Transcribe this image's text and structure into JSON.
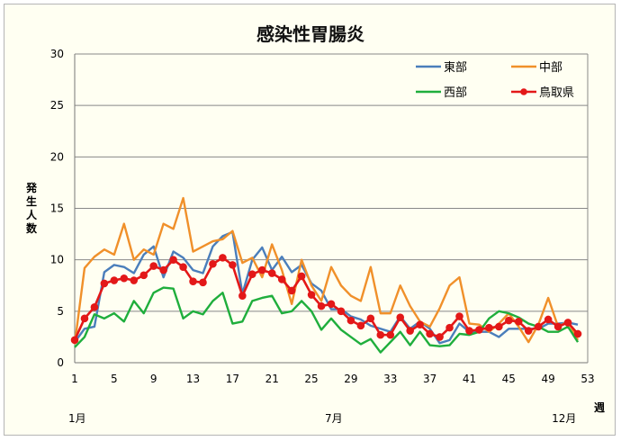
{
  "chart_data": {
    "type": "line",
    "title": "感染性胃腸炎",
    "ylabel": "発生人数",
    "xlabel": "週",
    "ylim": [
      0,
      30
    ],
    "yticks": [
      0,
      5,
      10,
      15,
      20,
      25,
      30
    ],
    "xlim": [
      1,
      53
    ],
    "xticks": [
      1,
      5,
      9,
      13,
      17,
      21,
      25,
      29,
      33,
      37,
      41,
      45,
      49,
      53
    ],
    "month_labels": [
      {
        "week": 1,
        "text": "1月"
      },
      {
        "week": 27,
        "text": "7月"
      },
      {
        "week": 50,
        "text": "12月"
      }
    ],
    "grid": true,
    "legend_position": "top-right",
    "x": [
      1,
      2,
      3,
      4,
      5,
      6,
      7,
      8,
      9,
      10,
      11,
      12,
      13,
      14,
      15,
      16,
      17,
      18,
      19,
      20,
      21,
      22,
      23,
      24,
      25,
      26,
      27,
      28,
      29,
      30,
      31,
      32,
      33,
      34,
      35,
      36,
      37,
      38,
      39,
      40,
      41,
      42,
      43,
      44,
      45,
      46,
      47,
      48,
      49,
      50,
      51,
      52
    ],
    "series": [
      {
        "name": "東部",
        "color": "#4a7ebb",
        "marker": false,
        "values": [
          2.0,
          3.3,
          3.5,
          8.8,
          9.5,
          9.3,
          8.7,
          10.5,
          11.3,
          8.3,
          10.8,
          10.2,
          9.0,
          8.7,
          11.3,
          12.3,
          12.7,
          6.7,
          10.0,
          11.2,
          9.0,
          10.3,
          8.8,
          9.5,
          7.7,
          7.0,
          5.2,
          5.2,
          4.5,
          4.2,
          3.6,
          3.3,
          3.0,
          4.5,
          3.3,
          4.0,
          3.3,
          1.9,
          2.2,
          3.8,
          3.0,
          3.0,
          3.0,
          2.5,
          3.3,
          3.3,
          3.3,
          3.3,
          3.8,
          3.8,
          3.9,
          3.7
        ]
      },
      {
        "name": "中部",
        "color": "#f0902a",
        "marker": false,
        "values": [
          1.8,
          9.2,
          10.3,
          11.0,
          10.5,
          13.5,
          10.0,
          11.0,
          10.5,
          13.5,
          13.0,
          16.0,
          10.8,
          11.3,
          11.8,
          12.0,
          12.8,
          9.7,
          10.2,
          8.3,
          11.5,
          9.0,
          5.7,
          10.0,
          7.5,
          6.0,
          9.3,
          7.5,
          6.5,
          6.0,
          9.3,
          4.8,
          4.8,
          7.5,
          5.5,
          4.0,
          3.5,
          5.3,
          7.5,
          8.3,
          3.8,
          3.7,
          3.0,
          3.8,
          4.8,
          3.5,
          2.0,
          3.7,
          6.3,
          3.5,
          4.0,
          2.2
        ]
      },
      {
        "name": "西部",
        "color": "#1fae3c",
        "marker": false,
        "values": [
          1.5,
          2.5,
          4.7,
          4.3,
          4.8,
          4.0,
          6.0,
          4.8,
          6.8,
          7.3,
          7.2,
          4.3,
          5.0,
          4.7,
          6.0,
          6.8,
          3.8,
          4.0,
          6.0,
          6.3,
          6.5,
          4.8,
          5.0,
          6.0,
          5.0,
          3.2,
          4.3,
          3.2,
          2.5,
          1.8,
          2.3,
          1.0,
          2.0,
          3.0,
          1.7,
          3.0,
          1.7,
          1.6,
          1.7,
          2.8,
          2.7,
          3.0,
          4.3,
          5.0,
          4.8,
          4.4,
          3.8,
          3.5,
          3.0,
          3.0,
          3.5,
          2.0
        ]
      },
      {
        "name": "鳥取県",
        "color": "#e31818",
        "marker": true,
        "values": [
          2.2,
          4.3,
          5.4,
          7.7,
          8.0,
          8.2,
          8.0,
          8.5,
          9.4,
          9.0,
          10.0,
          9.3,
          7.9,
          7.8,
          9.6,
          10.2,
          9.5,
          6.5,
          8.6,
          9.0,
          8.7,
          8.1,
          7.0,
          8.4,
          6.6,
          5.5,
          5.7,
          5.0,
          4.1,
          3.6,
          4.3,
          2.7,
          2.7,
          4.4,
          3.1,
          3.7,
          2.8,
          2.5,
          3.4,
          4.5,
          3.1,
          3.2,
          3.4,
          3.5,
          4.1,
          4.0,
          3.1,
          3.5,
          4.2,
          3.5,
          3.9,
          2.8
        ]
      }
    ]
  }
}
